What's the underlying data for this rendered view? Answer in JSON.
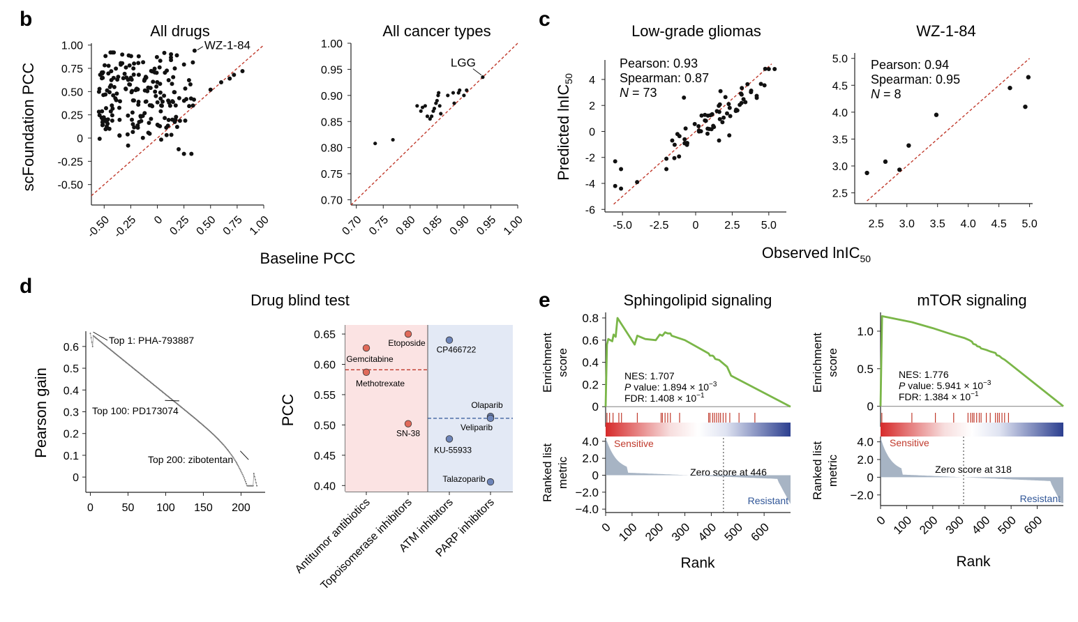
{
  "panel_labels": {
    "b": "b",
    "c": "c",
    "d": "d",
    "e": "e"
  },
  "colors": {
    "red": "#c0392b",
    "blue": "#2f5597",
    "green": "#7ab648",
    "grey": "#8a9bb0",
    "pink_bg": "#fbe3e3",
    "blue_bg": "#e3e9f5"
  },
  "chart_data": [
    {
      "id": "b1",
      "type": "scatter",
      "title": "All drugs",
      "xlabel": "Baseline PCC",
      "ylabel": "scFoundation PCC",
      "xlim": [
        -0.62,
        1.0
      ],
      "ylim": [
        -0.72,
        1.02
      ],
      "xticks": [
        -0.5,
        -0.25,
        0,
        0.25,
        0.5,
        0.75,
        1.0
      ],
      "xtick_labels": [
        "-0.50",
        "-0.25",
        "0",
        "0.25",
        "0.50",
        "0.75",
        "1.00"
      ],
      "yticks": [
        -0.5,
        -0.25,
        0,
        0.25,
        0.5,
        0.75,
        1.0
      ],
      "ytick_labels": [
        "-0.50",
        "-0.25",
        "0",
        "0.25",
        "0.50",
        "0.75",
        "1.00"
      ],
      "diagonal": true,
      "annotations": [
        {
          "text": "WZ-1-84",
          "x": 0.35,
          "y": 0.94
        }
      ],
      "n_points": 200
    },
    {
      "id": "b2",
      "type": "scatter",
      "title": "All cancer types",
      "xlabel": "",
      "ylabel": "",
      "xlim": [
        0.69,
        1.0
      ],
      "ylim": [
        0.69,
        1.0
      ],
      "xticks": [
        0.7,
        0.75,
        0.8,
        0.85,
        0.9,
        0.95,
        1.0
      ],
      "xtick_labels": [
        "0.70",
        "0.75",
        "0.80",
        "0.85",
        "0.90",
        "0.95",
        "1.00"
      ],
      "yticks": [
        0.7,
        0.75,
        0.8,
        0.85,
        0.9,
        0.95,
        1.0
      ],
      "ytick_labels": [
        "0.70",
        "0.75",
        "0.80",
        "0.85",
        "0.90",
        "0.95",
        "1.00"
      ],
      "diagonal": true,
      "x": [
        0.735,
        0.768,
        0.813,
        0.82,
        0.823,
        0.828,
        0.832,
        0.837,
        0.84,
        0.843,
        0.845,
        0.848,
        0.85,
        0.852,
        0.853,
        0.855,
        0.857,
        0.87,
        0.88,
        0.882,
        0.89,
        0.892,
        0.9,
        0.905,
        0.935
      ],
      "y": [
        0.808,
        0.815,
        0.88,
        0.87,
        0.877,
        0.88,
        0.86,
        0.855,
        0.86,
        0.87,
        0.875,
        0.885,
        0.89,
        0.9,
        0.905,
        0.88,
        0.865,
        0.9,
        0.905,
        0.885,
        0.905,
        0.91,
        0.9,
        0.91,
        0.935
      ],
      "annotations": [
        {
          "text": "LGG",
          "x": 0.935,
          "y": 0.935
        }
      ]
    },
    {
      "id": "c1",
      "type": "scatter",
      "title": "Low-grade gliomas",
      "xlabel": "Observed lnIC",
      "xlabel_sub": "50",
      "ylabel": "Predicted lnIC",
      "ylabel_sub": "50",
      "xlim": [
        -6.2,
        6.2
      ],
      "ylim": [
        -6.2,
        5.5
      ],
      "xticks": [
        -5,
        -2.5,
        0,
        2.5,
        5
      ],
      "xtick_labels": [
        "-5.0",
        "-2.5",
        "0",
        "2.5",
        "5.0"
      ],
      "yticks": [
        -6,
        -4,
        -2,
        0,
        2,
        4
      ],
      "ytick_labels": [
        "-6",
        "-4",
        "-2",
        "0",
        "2",
        "4"
      ],
      "diagonal": true,
      "stats": [
        "Pearson: 0.93",
        "Spearman: 0.87"
      ],
      "n_label": "N",
      "n_value": " = 73",
      "n_points": 73
    },
    {
      "id": "c2",
      "type": "scatter",
      "title": "WZ-1-84",
      "xlim": [
        2.15,
        5.05
      ],
      "ylim": [
        2.3,
        5.1
      ],
      "xticks": [
        2.5,
        3.0,
        3.5,
        4.0,
        4.5,
        5.0
      ],
      "xtick_labels": [
        "2.5",
        "3.0",
        "3.5",
        "4.0",
        "4.5",
        "5.0"
      ],
      "yticks": [
        2.5,
        3.0,
        3.5,
        4.0,
        4.5,
        5.0
      ],
      "ytick_labels": [
        "2.5",
        "3.0",
        "3.5",
        "4.0",
        "4.5",
        "5.0"
      ],
      "diagonal": true,
      "x": [
        2.35,
        2.65,
        2.88,
        3.03,
        3.48,
        4.68,
        4.93,
        4.98
      ],
      "y": [
        2.87,
        3.08,
        2.93,
        3.38,
        3.95,
        4.45,
        4.1,
        4.65
      ],
      "stats": [
        "Pearson: 0.94",
        "Spearman: 0.95"
      ],
      "n_label": "N",
      "n_value": " = 8"
    },
    {
      "id": "d_title",
      "type": "text",
      "title": "Drug blind test"
    },
    {
      "id": "d1",
      "type": "line",
      "ylabel": "Pearson gain",
      "xlim": [
        -6,
        232
      ],
      "ylim": [
        -0.07,
        0.67
      ],
      "xticks": [
        0,
        50,
        100,
        150,
        200
      ],
      "xtick_labels": [
        "0",
        "50",
        "100",
        "150",
        "200"
      ],
      "yticks": [
        0,
        0.1,
        0.2,
        0.3,
        0.4,
        0.5,
        0.6
      ],
      "ytick_labels": [
        "0",
        "0.1",
        "0.2",
        "0.3",
        "0.4",
        "0.5",
        "0.6"
      ],
      "n": 222,
      "y_start": 0.66,
      "y_end": -0.04,
      "annotations": [
        "Top 1: PHA-793887",
        "Top 100: PD173074",
        "Top 200: zibotentan"
      ]
    },
    {
      "id": "d2",
      "type": "scatter",
      "ylabel": "PCC",
      "ylim": [
        0.39,
        0.665
      ],
      "yticks": [
        0.4,
        0.45,
        0.5,
        0.55,
        0.6,
        0.65
      ],
      "ytick_labels": [
        "0.40",
        "0.45",
        "0.50",
        "0.55",
        "0.60",
        "0.65"
      ],
      "categories": [
        "Antitumor antibiotics",
        "Topoisomerase inhibitors",
        "ATM inhibitors",
        "PARP inhibitors"
      ],
      "points": [
        {
          "label": "Gemcitabine",
          "category": 0,
          "y": 0.627,
          "group": "red"
        },
        {
          "label": "Methotrexate",
          "category": 0,
          "y": 0.587,
          "group": "red"
        },
        {
          "label": "Etoposide",
          "category": 1,
          "y": 0.65,
          "group": "red"
        },
        {
          "label": "SN-38",
          "category": 1,
          "y": 0.502,
          "group": "red"
        },
        {
          "label": "CP466722",
          "category": 2,
          "y": 0.64,
          "group": "blue"
        },
        {
          "label": "KU-55933",
          "category": 2,
          "y": 0.477,
          "group": "blue"
        },
        {
          "label": "Olaparib",
          "category": 3,
          "y": 0.514,
          "group": "blue"
        },
        {
          "label": "Veliparib",
          "category": 3,
          "y": 0.511,
          "group": "blue"
        },
        {
          "label": "Talazoparib",
          "category": 3,
          "y": 0.406,
          "group": "blue"
        }
      ],
      "red_mean": 0.591,
      "blue_mean": 0.511
    },
    {
      "id": "e1",
      "type": "line",
      "title": "Sphingolipid signaling",
      "ylabel_top": [
        "Enrichment",
        "score"
      ],
      "ylabel_bottom": [
        "Ranked list",
        "metric"
      ],
      "xlabel": "Rank",
      "es_ylim": [
        -0.03,
        0.85
      ],
      "es_yticks": [
        0,
        0.2,
        0.4,
        0.6,
        0.8
      ],
      "es_ytick_labels": [
        "0",
        "0.2",
        "0.4",
        "0.6",
        "0.8"
      ],
      "rank_max": 700,
      "xticks": [
        0,
        100,
        200,
        300,
        400,
        500,
        600
      ],
      "xtick_labels": [
        "0",
        "100",
        "200",
        "300",
        "400",
        "500",
        "600"
      ],
      "metric_ylim": [
        -4.4,
        4.4
      ],
      "metric_yticks": [
        4,
        2,
        0,
        -2,
        -4
      ],
      "metric_ytick_labels": [
        "4.0",
        "2.0",
        "0",
        "−2.0",
        "−4.0"
      ],
      "es_curve": [
        [
          0,
          0
        ],
        [
          5,
          0.56
        ],
        [
          10,
          0.61
        ],
        [
          25,
          0.59
        ],
        [
          30,
          0.65
        ],
        [
          38,
          0.63
        ],
        [
          45,
          0.8
        ],
        [
          110,
          0.56
        ],
        [
          120,
          0.64
        ],
        [
          150,
          0.61
        ],
        [
          190,
          0.6
        ],
        [
          205,
          0.65
        ],
        [
          215,
          0.64
        ],
        [
          225,
          0.67
        ],
        [
          235,
          0.66
        ],
        [
          245,
          0.66
        ],
        [
          250,
          0.64
        ],
        [
          300,
          0.6
        ],
        [
          390,
          0.48
        ],
        [
          395,
          0.46
        ],
        [
          405,
          0.46
        ],
        [
          410,
          0.45
        ],
        [
          415,
          0.43
        ],
        [
          430,
          0.42
        ],
        [
          460,
          0.36
        ],
        [
          475,
          0.28
        ],
        [
          700,
          0
        ]
      ],
      "hits": [
        5,
        15,
        28,
        50,
        60,
        120,
        210,
        215,
        225,
        235,
        245,
        280,
        390,
        395,
        405,
        412,
        420,
        428,
        435,
        445,
        455,
        470,
        505,
        565
      ],
      "zero_score": 446,
      "nes": "NES: 1.707",
      "pvalue_prefix": "P",
      "pvalue_text": " value: 1.894 × 10",
      "pvalue_exp": "−3",
      "fdr_text": "FDR: 1.408 × 10",
      "fdr_exp": "−1",
      "zero_label": "Zero score at 446",
      "sensitive_label": "Sensitive",
      "resistant_label": "Resistant"
    },
    {
      "id": "e2",
      "type": "line",
      "title": "mTOR signaling",
      "ylabel_top": [
        "Enrichment",
        "score"
      ],
      "ylabel_bottom": [
        "Ranked list",
        "metric"
      ],
      "xlabel": "Rank",
      "es_ylim": [
        -0.05,
        1.25
      ],
      "es_yticks": [
        0,
        0.5,
        1.0
      ],
      "es_ytick_labels": [
        "0",
        "0.5",
        "1.0"
      ],
      "rank_max": 700,
      "xticks": [
        0,
        100,
        200,
        300,
        400,
        500,
        600
      ],
      "xtick_labels": [
        "0",
        "100",
        "200",
        "300",
        "400",
        "500",
        "600"
      ],
      "metric_ylim": [
        -3.2,
        4.6
      ],
      "metric_yticks": [
        4,
        2,
        0,
        -2
      ],
      "metric_ytick_labels": [
        "4.0",
        "2.0",
        "0",
        "−2.0"
      ],
      "es_curve": [
        [
          0,
          0
        ],
        [
          6,
          1.2
        ],
        [
          120,
          1.12
        ],
        [
          200,
          1.04
        ],
        [
          280,
          0.95
        ],
        [
          320,
          0.91
        ],
        [
          340,
          0.88
        ],
        [
          350,
          0.86
        ],
        [
          355,
          0.83
        ],
        [
          365,
          0.82
        ],
        [
          370,
          0.8
        ],
        [
          380,
          0.79
        ],
        [
          385,
          0.77
        ],
        [
          405,
          0.75
        ],
        [
          420,
          0.73
        ],
        [
          440,
          0.71
        ],
        [
          445,
          0.68
        ],
        [
          455,
          0.67
        ],
        [
          465,
          0.64
        ],
        [
          475,
          0.62
        ],
        [
          490,
          0.58
        ],
        [
          700,
          0
        ]
      ],
      "hits": [
        5,
        120,
        210,
        280,
        335,
        345,
        352,
        358,
        368,
        378,
        385,
        405,
        420,
        440,
        448,
        455,
        465,
        475,
        490
      ],
      "zero_score": 318,
      "nes": "NES: 1.776",
      "pvalue_prefix": "P",
      "pvalue_text": " value: 5.941 × 10",
      "pvalue_exp": "−3",
      "fdr_text": "FDR: 1.384 × 10",
      "fdr_exp": "−1",
      "zero_label": "Zero score at 318",
      "sensitive_label": "Sensitive",
      "resistant_label": "Resistant"
    }
  ]
}
